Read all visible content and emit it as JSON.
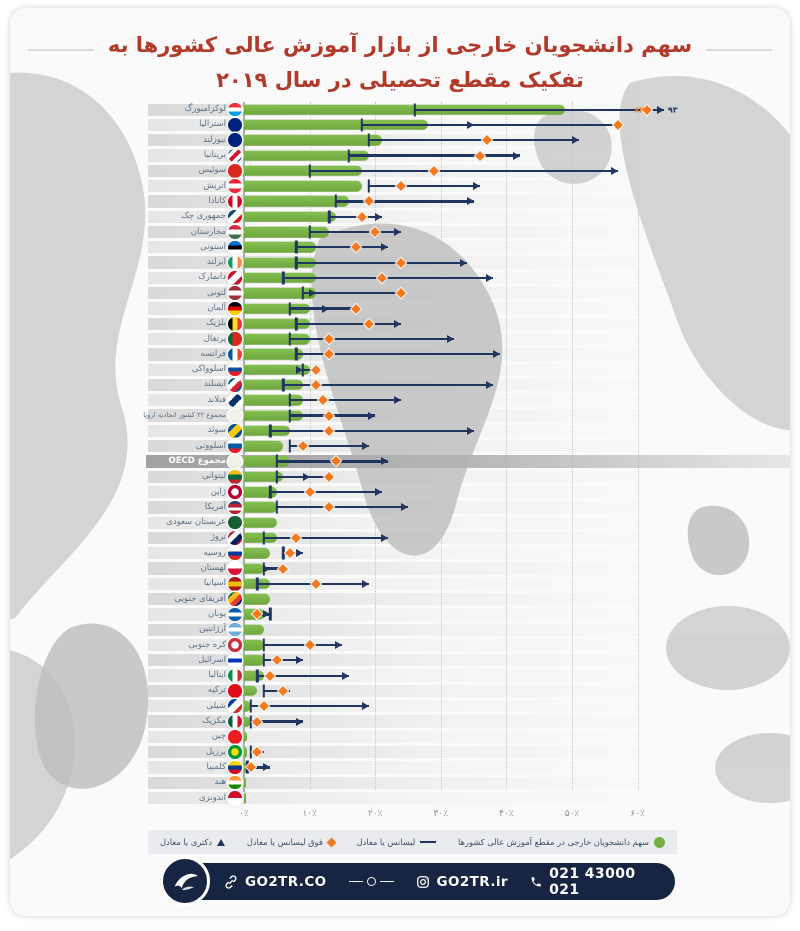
{
  "title": {
    "line1": "سهم دانشجویان خارجی از بازار آموزش عالی کشورها به",
    "line2": "تفکیک مقطع تحصیلی در سال ۲۰۱۹"
  },
  "colors": {
    "title": "#b23a2b",
    "bar_green": "#76b043",
    "navy": "#20355f",
    "orange": "#f4791f",
    "label": "#5d7186",
    "legend_bg": "#e9ebee",
    "footer_bg": "#172442",
    "grid": "#c3c6ca"
  },
  "axis": {
    "ticks": [
      "۰٪",
      "۱۰٪",
      "۲۰٪",
      "۳۰٪",
      "۴۰٪",
      "۵۰٪",
      "۶۰٪"
    ],
    "tick_step": 10
  },
  "legend": {
    "items": [
      {
        "marker": "circle",
        "icon": "green-dot-icon",
        "label": "سهم دانشجویان خارجی در مقطع آموزش عالی کشورها"
      },
      {
        "marker": "line",
        "icon": "bachelor-line-icon",
        "label": "لیسانس یا معادل"
      },
      {
        "marker": "diamond",
        "icon": "master-diamond-icon",
        "label": "فوق لیسانس یا معادل"
      },
      {
        "marker": "triangle",
        "icon": "phd-triangle-icon",
        "label": "دکتری یا معادل"
      }
    ]
  },
  "footer": {
    "site": "GO2TR.CO",
    "instagram": "GO2TR.ir",
    "phone": "021 43000 021"
  },
  "chart_data": {
    "type": "bar",
    "orientation": "horizontal",
    "unit": "percent",
    "axis_max": 66,
    "series_meaning": {
      "total": "سهم دانشجویان خارجی در مقطع آموزش عالی کشورها",
      "bachelor": "لیسانس یا معادل",
      "master": "فوق لیسانس یا معادل",
      "doctorate": "دکتری یا معادل"
    },
    "rows": [
      {
        "label": "لوکزامبورگ",
        "country": "luxembourg",
        "flag": {
          "dir": "h",
          "colors": [
            "#ef3340",
            "#ffffff",
            "#00a3e0"
          ]
        },
        "total": 49,
        "bachelor": 26,
        "master": 82,
        "doctorate": 93,
        "master_display": 61.5,
        "doctorate_display": 64,
        "master_label": "۸۲",
        "doctorate_label": "۹۳"
      },
      {
        "label": "استرالیا",
        "country": "australia",
        "flag": {
          "dir": "s",
          "colors": [
            "#00247d"
          ]
        },
        "total": 28,
        "bachelor": 18,
        "master": 57,
        "doctorate": 35
      },
      {
        "label": "نیوزلند",
        "country": "new-zealand",
        "flag": {
          "dir": "s",
          "colors": [
            "#00247d"
          ]
        },
        "total": 21,
        "bachelor": 19,
        "master": 37,
        "doctorate": 51
      },
      {
        "label": "بریتانیا",
        "country": "uk",
        "flag": {
          "dir": "d",
          "colors": [
            "#00247d",
            "#ffffff",
            "#cf142b",
            "#ffffff",
            "#00247d"
          ]
        },
        "total": 19,
        "bachelor": 16,
        "master": 36,
        "doctorate": 42
      },
      {
        "label": "سوئیس",
        "country": "switzerland",
        "flag": {
          "dir": "s",
          "colors": [
            "#da291c"
          ]
        },
        "total": 18,
        "bachelor": 10,
        "master": 29,
        "doctorate": 57
      },
      {
        "label": "اتریش",
        "country": "austria",
        "flag": {
          "dir": "h",
          "colors": [
            "#ed2939",
            "#ffffff",
            "#ed2939"
          ]
        },
        "total": 18,
        "bachelor": 19,
        "master": 24,
        "doctorate": 36
      },
      {
        "label": "کانادا",
        "country": "canada",
        "flag": {
          "dir": "v",
          "colors": [
            "#d80621",
            "#ffffff",
            "#d80621"
          ]
        },
        "total": 16,
        "bachelor": 14,
        "master": 19,
        "doctorate": 35
      },
      {
        "label": "جمهوری چک",
        "country": "czech-republic",
        "flag": {
          "dir": "d",
          "colors": [
            "#11457e",
            "#ffffff",
            "#d7141a"
          ]
        },
        "total": 14,
        "bachelor": 13,
        "master": 18,
        "doctorate": 21
      },
      {
        "label": "مجارستان",
        "country": "hungary",
        "flag": {
          "dir": "h",
          "colors": [
            "#cd2a3e",
            "#ffffff",
            "#436f4d"
          ]
        },
        "total": 13,
        "bachelor": 10,
        "master": 20,
        "doctorate": 24
      },
      {
        "label": "استونی",
        "country": "estonia",
        "flag": {
          "dir": "h",
          "colors": [
            "#0072ce",
            "#000000",
            "#ffffff"
          ]
        },
        "total": 11,
        "bachelor": 8,
        "master": 17,
        "doctorate": 22
      },
      {
        "label": "ایرلند",
        "country": "ireland",
        "flag": {
          "dir": "v",
          "colors": [
            "#169b62",
            "#ffffff",
            "#ff883e"
          ]
        },
        "total": 11,
        "bachelor": 8,
        "master": 24,
        "doctorate": 34
      },
      {
        "label": "دانمارک",
        "country": "denmark",
        "flag": {
          "dir": "d",
          "colors": [
            "#c8102e",
            "#ffffff",
            "#c8102e"
          ]
        },
        "total": 11,
        "bachelor": 6,
        "master": 21,
        "doctorate": 38
      },
      {
        "label": "لتونی",
        "country": "latvia",
        "flag": {
          "dir": "h",
          "colors": [
            "#9e3039",
            "#ffffff",
            "#9e3039"
          ]
        },
        "total": 11,
        "bachelor": 9,
        "master": 24,
        "doctorate": 11
      },
      {
        "label": "آلمان",
        "country": "germany",
        "flag": {
          "dir": "h",
          "colors": [
            "#000000",
            "#dd0000",
            "#ffce00"
          ]
        },
        "total": 10,
        "bachelor": 7,
        "master": 17,
        "doctorate": 13
      },
      {
        "label": "بلژیک",
        "country": "belgium",
        "flag": {
          "dir": "v",
          "colors": [
            "#000000",
            "#fdda24",
            "#ef3340"
          ]
        },
        "total": 10,
        "bachelor": 8,
        "master": 19,
        "doctorate": 24
      },
      {
        "label": "پرتغال",
        "country": "portugal",
        "flag": {
          "dir": "v",
          "colors": [
            "#046a38",
            "#da291c",
            "#da291c"
          ]
        },
        "total": 10,
        "bachelor": 7,
        "master": 13,
        "doctorate": 32
      },
      {
        "label": "فرانسه",
        "country": "france",
        "flag": {
          "dir": "v",
          "colors": [
            "#0055a4",
            "#ffffff",
            "#ef4135"
          ]
        },
        "total": 9,
        "bachelor": 8,
        "master": 13,
        "doctorate": 39
      },
      {
        "label": "اسلوواکی",
        "country": "slovakia",
        "flag": {
          "dir": "h",
          "colors": [
            "#ffffff",
            "#0b4ea2",
            "#ee1c25"
          ]
        },
        "total": 10,
        "bachelor": 9,
        "master": 11,
        "doctorate": 9
      },
      {
        "label": "ایسلند",
        "country": "iceland",
        "flag": {
          "dir": "d",
          "colors": [
            "#02529c",
            "#ffffff",
            "#dc1e35",
            "#02529c"
          ]
        },
        "total": 9,
        "bachelor": 6,
        "master": 11,
        "doctorate": 38
      },
      {
        "label": "فنلاند",
        "country": "finland",
        "flag": {
          "dir": "d",
          "colors": [
            "#ffffff",
            "#002f6c",
            "#ffffff"
          ]
        },
        "total": 9,
        "bachelor": 7,
        "master": 12,
        "doctorate": 24
      },
      {
        "label": "مجموع ۲۲ کشور اتحادیه اروپا",
        "country": "eu-22",
        "flag": {
          "dir": "s",
          "colors": [
            "#f1f1e6"
          ]
        },
        "total": 9,
        "bachelor": 7,
        "master": 13,
        "doctorate": 20
      },
      {
        "label": "سوئد",
        "country": "sweden",
        "flag": {
          "dir": "d",
          "colors": [
            "#005293",
            "#fecb00",
            "#005293"
          ]
        },
        "total": 7,
        "bachelor": 4,
        "master": 13,
        "doctorate": 35
      },
      {
        "label": "اسلوونی",
        "country": "slovenia",
        "flag": {
          "dir": "h",
          "colors": [
            "#ffffff",
            "#005da4",
            "#ed1c24"
          ]
        },
        "total": 6,
        "bachelor": 7,
        "master": 9,
        "doctorate": 19
      },
      {
        "label": "مجموع OECD",
        "country": "oecd-total",
        "highlight": true,
        "flag": {
          "dir": "s",
          "colors": [
            "#f1f1e6"
          ]
        },
        "total": 7,
        "bachelor": 5,
        "master": 14,
        "doctorate": 22
      },
      {
        "label": "لیتوانی",
        "country": "lithuania",
        "flag": {
          "dir": "h",
          "colors": [
            "#fdb913",
            "#006a44",
            "#c1272d"
          ]
        },
        "total": 6,
        "bachelor": 5,
        "master": 13,
        "doctorate": 10
      },
      {
        "label": "ژاپن",
        "country": "japan",
        "flag": {
          "dir": "r",
          "colors": [
            "#bc002d",
            "#ffffff"
          ]
        },
        "total": 5,
        "bachelor": 4,
        "master": 10,
        "doctorate": 21
      },
      {
        "label": "آمریکا",
        "country": "usa",
        "flag": {
          "dir": "h",
          "colors": [
            "#3c3b6e",
            "#b22234",
            "#ffffff",
            "#b22234"
          ]
        },
        "total": 5,
        "bachelor": 5,
        "master": 13,
        "doctorate": 25
      },
      {
        "label": "عربستان سعودی",
        "country": "saudi-arabia",
        "flag": {
          "dir": "s",
          "colors": [
            "#165d31"
          ]
        },
        "total": 5,
        "bachelor": null,
        "master": null,
        "doctorate": null
      },
      {
        "label": "نروژ",
        "country": "norway",
        "flag": {
          "dir": "d",
          "colors": [
            "#ba0c2f",
            "#ffffff",
            "#00205b",
            "#ba0c2f"
          ]
        },
        "total": 5,
        "bachelor": 3,
        "master": 8,
        "doctorate": 22
      },
      {
        "label": "روسیه",
        "country": "russia",
        "flag": {
          "dir": "h",
          "colors": [
            "#ffffff",
            "#0039a6",
            "#d52b1e"
          ]
        },
        "total": 4,
        "bachelor": 6,
        "master": 7,
        "doctorate": 9
      },
      {
        "label": "لهستان",
        "country": "poland",
        "flag": {
          "dir": "h",
          "colors": [
            "#ffffff",
            "#dc143c"
          ]
        },
        "total": 3,
        "bachelor": 3,
        "master": 6,
        "doctorate": 4
      },
      {
        "label": "اسپانیا",
        "country": "spain",
        "flag": {
          "dir": "h",
          "colors": [
            "#aa151b",
            "#f1bf00",
            "#aa151b"
          ]
        },
        "total": 4,
        "bachelor": 2,
        "master": 11,
        "doctorate": 19
      },
      {
        "label": "آفریقای جنوبی",
        "country": "south-africa",
        "flag": {
          "dir": "d",
          "colors": [
            "#007749",
            "#ffb81c",
            "#e03c31",
            "#001489"
          ]
        },
        "total": 4,
        "bachelor": null,
        "master": null,
        "doctorate": null
      },
      {
        "label": "یونان",
        "country": "greece",
        "flag": {
          "dir": "h",
          "colors": [
            "#0d5eaf",
            "#ffffff",
            "#0d5eaf"
          ]
        },
        "total": 3,
        "bachelor": 4,
        "master": 2,
        "doctorate": 4
      },
      {
        "label": "آرژانتین",
        "country": "argentina",
        "flag": {
          "dir": "h",
          "colors": [
            "#74acdf",
            "#ffffff",
            "#74acdf"
          ]
        },
        "total": 3,
        "bachelor": null,
        "master": null,
        "doctorate": null
      },
      {
        "label": "کره جنوبی",
        "country": "south-korea",
        "flag": {
          "dir": "r",
          "colors": [
            "#cd2e3a",
            "#ffffff"
          ]
        },
        "total": 3,
        "bachelor": 3,
        "master": 10,
        "doctorate": 15
      },
      {
        "label": "اسرائیل",
        "country": "israel",
        "flag": {
          "dir": "h",
          "colors": [
            "#ffffff",
            "#0038b8",
            "#ffffff"
          ]
        },
        "total": 3,
        "bachelor": 3,
        "master": 5,
        "doctorate": 9
      },
      {
        "label": "ایتالیا",
        "country": "italy",
        "flag": {
          "dir": "v",
          "colors": [
            "#009246",
            "#ffffff",
            "#ce2b37"
          ]
        },
        "total": 3,
        "bachelor": 2,
        "master": 4,
        "doctorate": 16
      },
      {
        "label": "ترکیه",
        "country": "turkey",
        "flag": {
          "dir": "s",
          "colors": [
            "#e30a17"
          ]
        },
        "total": 2,
        "bachelor": 3,
        "master": 6,
        "doctorate": 7
      },
      {
        "label": "شیلی",
        "country": "chile",
        "flag": {
          "dir": "d",
          "colors": [
            "#0039a6",
            "#ffffff",
            "#d52b1e"
          ]
        },
        "total": 1,
        "bachelor": 1,
        "master": 3,
        "doctorate": 19
      },
      {
        "label": "مکزیک",
        "country": "mexico",
        "flag": {
          "dir": "v",
          "colors": [
            "#006341",
            "#ffffff",
            "#ce1126"
          ]
        },
        "total": 1,
        "bachelor": 1,
        "master": 2,
        "doctorate": 9
      },
      {
        "label": "چین",
        "country": "china",
        "flag": {
          "dir": "s",
          "colors": [
            "#ee1c25"
          ]
        },
        "total": 0.5,
        "bachelor": null,
        "master": null,
        "doctorate": null
      },
      {
        "label": "برزیل",
        "country": "brazil",
        "flag": {
          "dir": "r",
          "colors": [
            "#009739",
            "#ffdf00"
          ]
        },
        "total": 0.5,
        "bachelor": 1,
        "master": 2,
        "doctorate": 3
      },
      {
        "label": "کلمبیا",
        "country": "colombia",
        "flag": {
          "dir": "h",
          "colors": [
            "#fcd116",
            "#003893",
            "#ce1126"
          ]
        },
        "total": 0.5,
        "bachelor": 0.5,
        "master": 1,
        "doctorate": 4
      },
      {
        "label": "هند",
        "country": "india",
        "flag": {
          "dir": "h",
          "colors": [
            "#ff9933",
            "#ffffff",
            "#138808"
          ]
        },
        "total": 0.2,
        "bachelor": null,
        "master": null,
        "doctorate": null
      },
      {
        "label": "اندونزی",
        "country": "indonesia",
        "flag": {
          "dir": "h",
          "colors": [
            "#ce1126",
            "#ffffff"
          ]
        },
        "total": 0.1,
        "bachelor": null,
        "master": null,
        "doctorate": null
      }
    ]
  }
}
